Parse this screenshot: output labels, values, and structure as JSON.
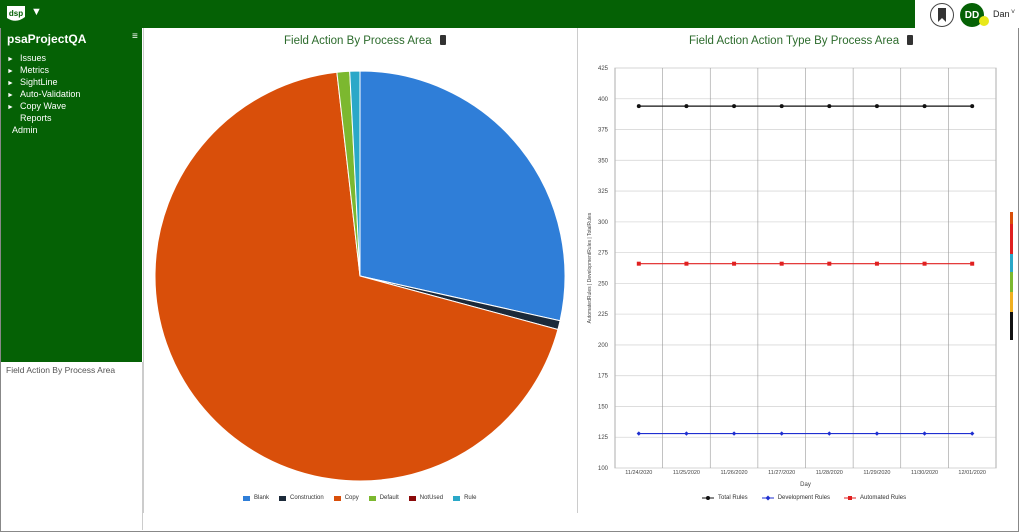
{
  "header": {
    "logo_text": "dsp",
    "logo_menu_caret": "▼",
    "user": {
      "initials": "DD",
      "name": "Dan",
      "caret": "˅"
    },
    "colors": {
      "brand_green": "#056105",
      "status": "#e8e81a"
    }
  },
  "sidebar": {
    "project": "psaProjectQA",
    "menu_icon": "≡",
    "items": [
      {
        "label": "Issues",
        "arrow": "►"
      },
      {
        "label": "Metrics",
        "arrow": "►"
      },
      {
        "label": "SightLine",
        "arrow": "►"
      },
      {
        "label": "Auto-Validation",
        "arrow": "►"
      },
      {
        "label": "Copy Wave",
        "arrow": "►"
      },
      {
        "label": "Reports",
        "arrow": ""
      },
      {
        "label": "Admin",
        "arrow": ""
      }
    ],
    "footer_text": "Field Action By Process Area"
  },
  "chart_data": [
    {
      "type": "pie",
      "title": "Field Action By Process Area",
      "categories": [
        "Blank",
        "Construction",
        "Copy",
        "Default",
        "NotUsed",
        "Rule"
      ],
      "values": [
        28.5,
        0.7,
        69.0,
        1.0,
        0.0,
        0.8
      ],
      "colors": [
        "#2f7ed8",
        "#1c2a3a",
        "#d94f0a",
        "#7cb82f",
        "#8b0a0a",
        "#2aa8c8"
      ],
      "legend_position": "bottom"
    },
    {
      "type": "line",
      "title": "Field Action Action Type By Process Area",
      "xlabel": "Day",
      "ylabel": "AutomatedRules | DevelopmentRules | TotalRules",
      "ylim": [
        100,
        425
      ],
      "yticks": [
        100,
        125,
        150,
        175,
        200,
        225,
        250,
        275,
        300,
        325,
        350,
        375,
        400,
        425
      ],
      "categories": [
        "11/24/2020",
        "11/25/2020",
        "11/26/2020",
        "11/27/2020",
        "11/28/2020",
        "11/29/2020",
        "11/30/2020",
        "12/01/2020"
      ],
      "series": [
        {
          "name": "Total Rules",
          "color": "#111111",
          "values": [
            394,
            394,
            394,
            394,
            394,
            394,
            394,
            394
          ]
        },
        {
          "name": "Development Rules",
          "color": "#1f2fd0",
          "values": [
            128,
            128,
            128,
            128,
            128,
            128,
            128,
            128
          ]
        },
        {
          "name": "Automated Rules",
          "color": "#e02020",
          "values": [
            266,
            266,
            266,
            266,
            266,
            266,
            266,
            266
          ]
        }
      ],
      "grid": true,
      "legend_position": "bottom"
    }
  ]
}
